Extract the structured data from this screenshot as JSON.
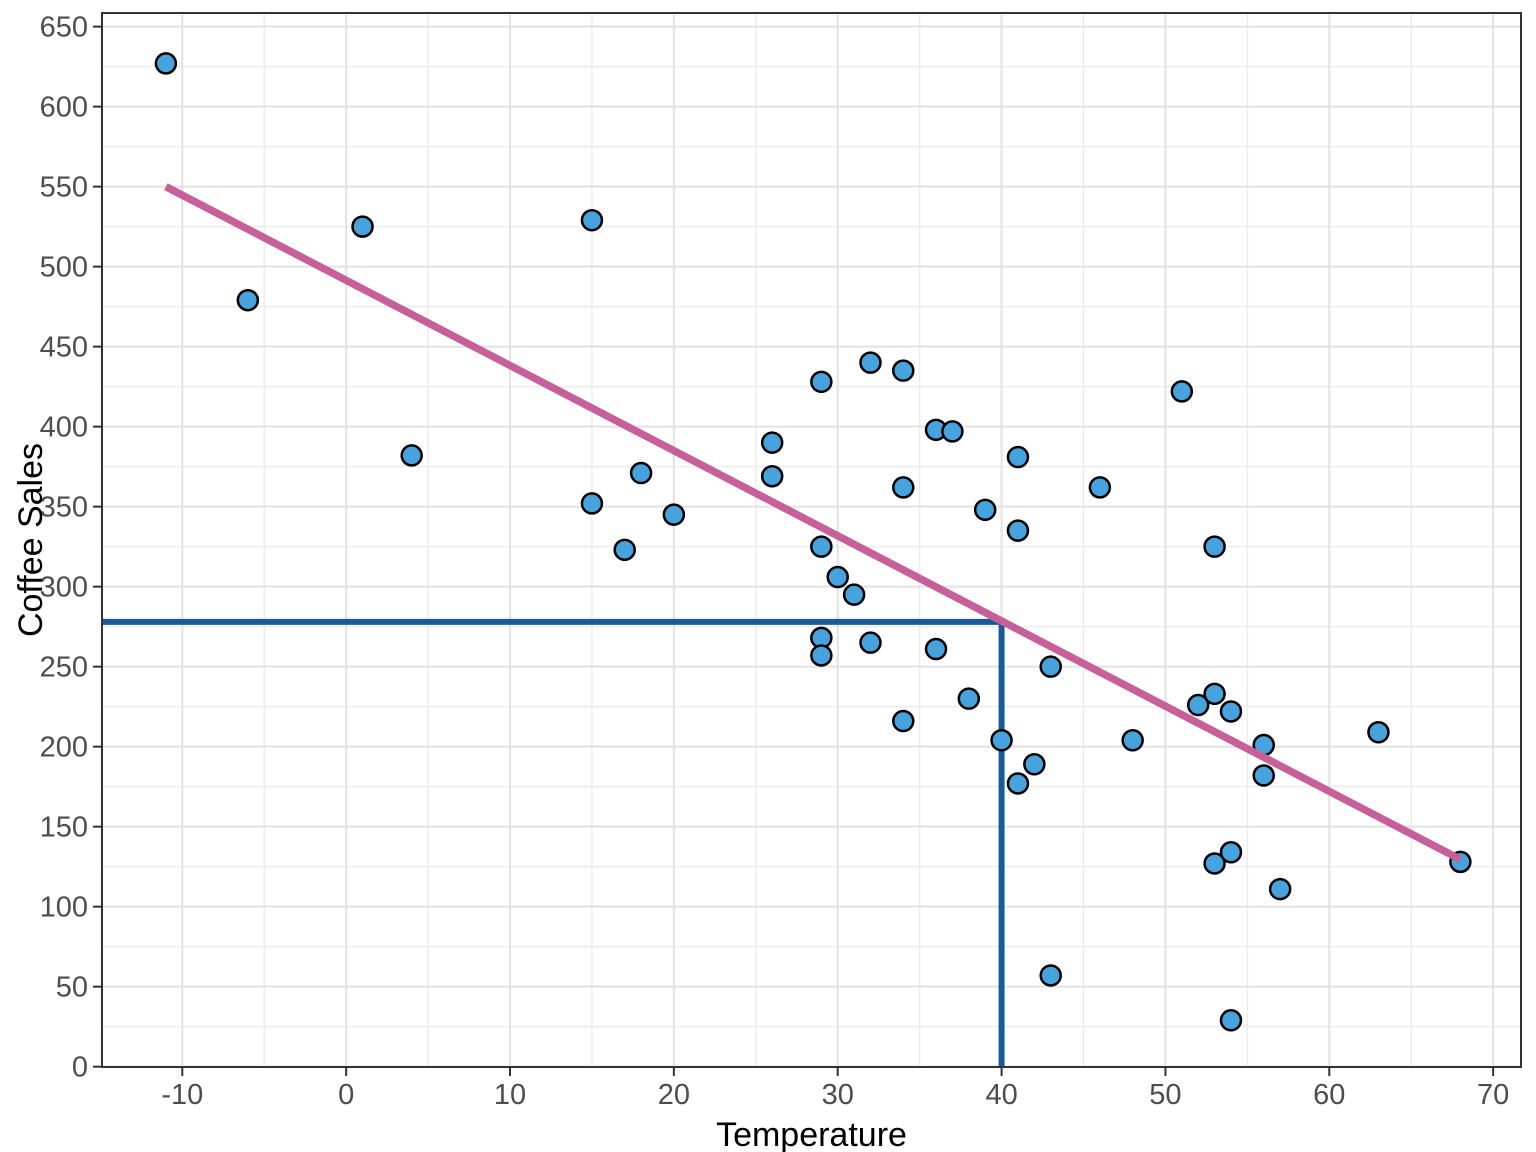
{
  "chart_data": {
    "type": "scatter",
    "title": "",
    "xlabel": "Temperature",
    "ylabel": "Coffee Sales",
    "xlim": [
      -14.9,
      71.7
    ],
    "ylim": [
      -0.2,
      658.5
    ],
    "x_ticks": [
      -10,
      0,
      10,
      20,
      30,
      40,
      50,
      60,
      70
    ],
    "y_ticks": [
      0,
      50,
      100,
      150,
      200,
      250,
      300,
      350,
      400,
      450,
      500,
      550,
      600,
      650
    ],
    "x_minor_step": 5,
    "y_minor_step": 25,
    "grid": "major-and-minor",
    "legend_position": "none",
    "points": [
      [
        -11,
        627
      ],
      [
        -6,
        479
      ],
      [
        1,
        525
      ],
      [
        4,
        382
      ],
      [
        15,
        529
      ],
      [
        15,
        352
      ],
      [
        17,
        323
      ],
      [
        18,
        371
      ],
      [
        20,
        345
      ],
      [
        26,
        390
      ],
      [
        26,
        369
      ],
      [
        29,
        428
      ],
      [
        29,
        325
      ],
      [
        29,
        268
      ],
      [
        29,
        257
      ],
      [
        30,
        306
      ],
      [
        31,
        295
      ],
      [
        32,
        440
      ],
      [
        32,
        265
      ],
      [
        34,
        435
      ],
      [
        34,
        362
      ],
      [
        34,
        216
      ],
      [
        36,
        398
      ],
      [
        36,
        261
      ],
      [
        37,
        397
      ],
      [
        38,
        230
      ],
      [
        39,
        348
      ],
      [
        40,
        204
      ],
      [
        41,
        381
      ],
      [
        41,
        335
      ],
      [
        41,
        177
      ],
      [
        42,
        189
      ],
      [
        43,
        250
      ],
      [
        43,
        57
      ],
      [
        46,
        362
      ],
      [
        48,
        204
      ],
      [
        51,
        422
      ],
      [
        52,
        226
      ],
      [
        53,
        325
      ],
      [
        53,
        233
      ],
      [
        53,
        127
      ],
      [
        54,
        222
      ],
      [
        54,
        134
      ],
      [
        54,
        29
      ],
      [
        56,
        201
      ],
      [
        56,
        182
      ],
      [
        57,
        111
      ],
      [
        63,
        209
      ],
      [
        68,
        128
      ]
    ],
    "regression_line": {
      "x1": -11,
      "y1": 550,
      "x2": 68,
      "y2": 129.5
    },
    "prediction_guides": {
      "x": 40,
      "y": 278
    },
    "style": {
      "point_fill": "#46A3DE",
      "point_stroke": "#000000",
      "trend_line_color": "#C75F98",
      "guide_line_color": "#1B5A96",
      "grid_major_color": "#E2E2E2",
      "grid_minor_color": "#ECECEC",
      "panel_border_color": "#333333",
      "tick_mark_color": "#333333",
      "tick_label_color": "#4D4D4D",
      "axis_title_color": "#000000",
      "panel_background": "#FFFFFF"
    }
  }
}
